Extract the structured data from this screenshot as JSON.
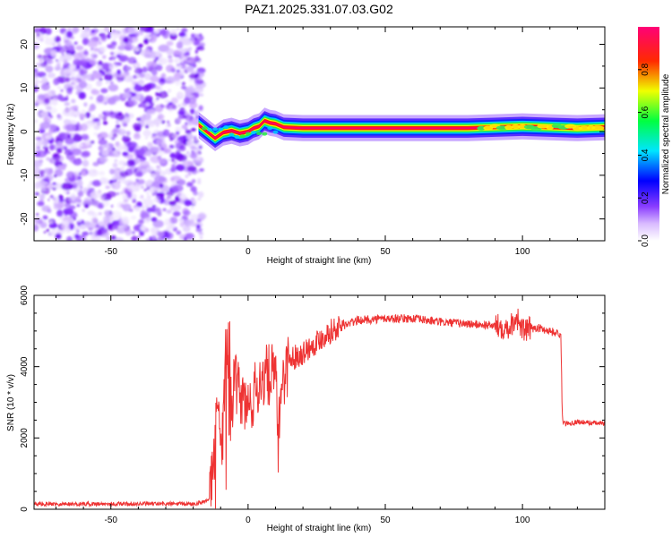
{
  "figure_title": "PAZ1.2025.331.07.03.G02",
  "chart_data": [
    {
      "type": "heatmap",
      "title": "PAZ1.2025.331.07.03.G02",
      "xlabel": "Height of straight line (km)",
      "ylabel": "Frequency (Hz)",
      "xlim": [
        -78,
        130
      ],
      "ylim": [
        -25,
        24
      ],
      "x_ticks": [
        -50,
        0,
        50,
        100
      ],
      "y_ticks": [
        -20,
        -10,
        0,
        10,
        20
      ],
      "noise_region_x": [
        -78,
        -18
      ],
      "signal_track": [
        {
          "x": -18,
          "f": 1.5
        },
        {
          "x": -15,
          "f": 0.0
        },
        {
          "x": -12,
          "f": -1.5
        },
        {
          "x": -9,
          "f": -0.2
        },
        {
          "x": -6,
          "f": 0.2
        },
        {
          "x": -3,
          "f": -0.4
        },
        {
          "x": 0,
          "f": 0.0
        },
        {
          "x": 2,
          "f": 0.8
        },
        {
          "x": 4,
          "f": 1.2
        },
        {
          "x": 6,
          "f": 2.5
        },
        {
          "x": 8,
          "f": 2.0
        },
        {
          "x": 10,
          "f": 1.8
        },
        {
          "x": 13,
          "f": 1.0
        },
        {
          "x": 20,
          "f": 0.8
        },
        {
          "x": 40,
          "f": 0.8
        },
        {
          "x": 60,
          "f": 0.8
        },
        {
          "x": 80,
          "f": 0.8
        },
        {
          "x": 90,
          "f": 1.0
        },
        {
          "x": 100,
          "f": 1.2
        },
        {
          "x": 110,
          "f": 1.0
        },
        {
          "x": 120,
          "f": 0.8
        },
        {
          "x": 130,
          "f": 1.0
        }
      ],
      "colorbar": {
        "label": "Normalized spectral amplitude",
        "range": [
          0,
          1
        ],
        "ticks": [
          "0.0",
          "0.2",
          "0.4",
          "0.6",
          "0.8"
        ],
        "colors": [
          "#ffffff",
          "#cc99ff",
          "#6600ff",
          "#0000ff",
          "#00ffff",
          "#00ff00",
          "#ffff00",
          "#ff0000",
          "#ff0088"
        ]
      }
    },
    {
      "type": "line",
      "xlabel": "Height of straight line (km)",
      "ylabel": "SNR (10 * v/v)",
      "xlim": [
        -78,
        130
      ],
      "ylim": [
        0,
        6000
      ],
      "x_ticks": [
        -50,
        0,
        50,
        100
      ],
      "y_ticks": [
        0,
        2000,
        4000,
        6000
      ],
      "series": [
        {
          "name": "SNR",
          "color": "#ee3333",
          "x": [
            -78,
            -60,
            -40,
            -20,
            -14,
            -12,
            -11,
            -10,
            -9,
            -8,
            -7,
            -5,
            0,
            5,
            10,
            11,
            12,
            15,
            20,
            30,
            40,
            50,
            60,
            70,
            80,
            90,
            95,
            98,
            100,
            105,
            110,
            114,
            114.5,
            115,
            120,
            130
          ],
          "y": [
            150,
            150,
            150,
            150,
            250,
            1800,
            3200,
            1000,
            2500,
            4800,
            2500,
            3500,
            2800,
            3700,
            3800,
            1800,
            3500,
            4200,
            4400,
            5000,
            5300,
            5350,
            5350,
            5250,
            5200,
            5150,
            5100,
            5400,
            5000,
            5100,
            5000,
            4900,
            2600,
            2400,
            2450,
            2400
          ]
        }
      ],
      "annotations": [
        {
          "x": 6,
          "y": 3700,
          "text": ""
        }
      ]
    }
  ]
}
